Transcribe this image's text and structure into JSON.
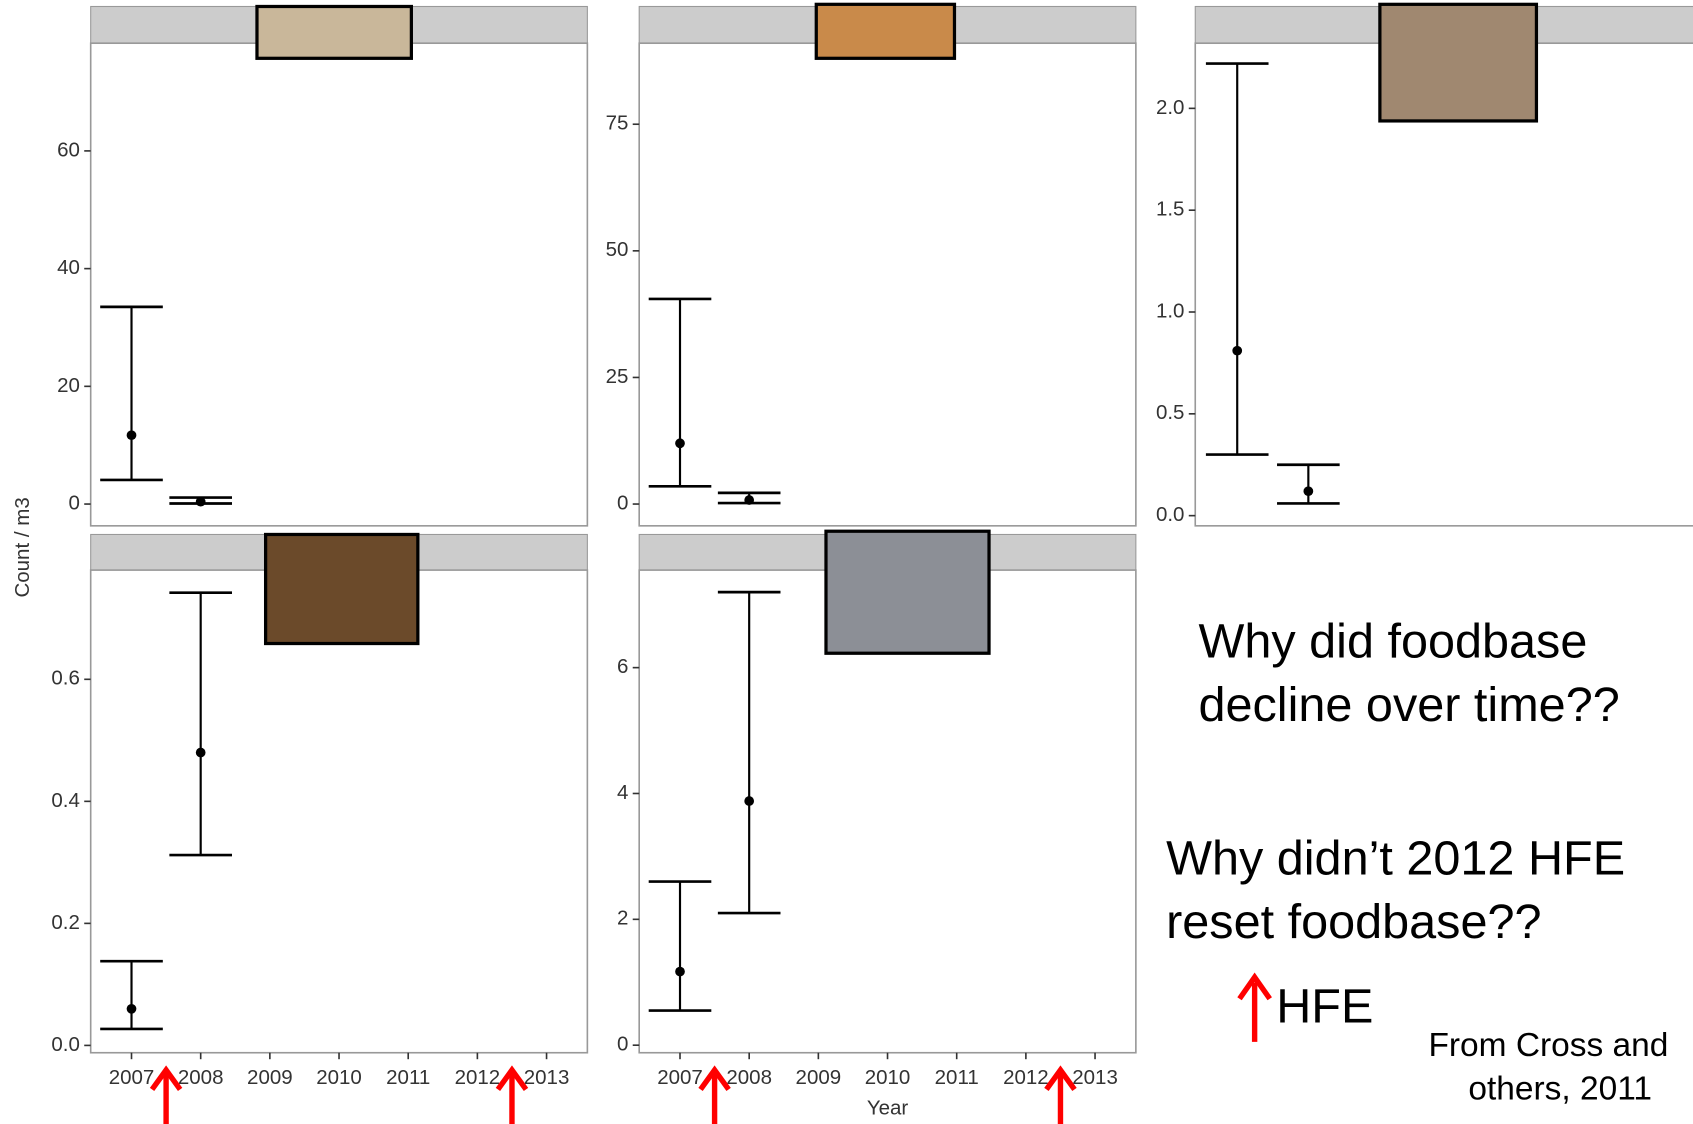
{
  "chart_data": [
    {
      "type": "errorbar",
      "x": [
        2007,
        2008
      ],
      "values": [
        11.7,
        0.4
      ],
      "lower": [
        4.1,
        0.1
      ],
      "upper": [
        33.5,
        1.1
      ],
      "color": "#000000",
      "xlim": [
        2006.41,
        2013.59
      ],
      "ylim": [
        -3.7,
        78.3
      ],
      "yticks": [
        0,
        20,
        40,
        60
      ]
    },
    {
      "type": "errorbar",
      "x": [
        2007,
        2008
      ],
      "values": [
        12,
        0.8
      ],
      "lower": [
        3.5,
        0.2
      ],
      "upper": [
        40.5,
        2.2
      ],
      "color": "#000000",
      "xlim": [
        2006.41,
        2013.59
      ],
      "ylim": [
        -4.3,
        91
      ],
      "yticks": [
        0,
        25,
        50,
        75
      ]
    },
    {
      "type": "errorbar",
      "x": [
        2007,
        2008
      ],
      "values": [
        0.81,
        0.12
      ],
      "lower": [
        0.3,
        0.06
      ],
      "upper": [
        2.22,
        0.25
      ],
      "color": "#000000",
      "xlim": [
        2006.41,
        2013.59
      ],
      "ylim": [
        -0.05,
        2.32
      ],
      "yticks": [
        {
          "value": 0,
          "label": "0.0"
        },
        0.5,
        {
          "value": 1,
          "label": "1.0"
        },
        1.5,
        {
          "value": 2,
          "label": "2.0"
        }
      ]
    },
    {
      "type": "errorbar",
      "x": [
        2007,
        2008
      ],
      "values": [
        0.06,
        0.48
      ],
      "lower": [
        0.027,
        0.312
      ],
      "upper": [
        0.138,
        0.742
      ],
      "color": "#000000",
      "xlim": [
        2006.41,
        2013.59
      ],
      "ylim": [
        -0.012,
        0.779
      ],
      "yticks": [
        {
          "value": 0,
          "label": "0.0"
        },
        0.2,
        0.4,
        0.6
      ],
      "xticks": [
        2007,
        2008,
        2009,
        2010,
        2011,
        2012,
        2013
      ],
      "events": [
        2007.5,
        2012.5
      ],
      "event_color": "#ff0000"
    },
    {
      "type": "errorbar",
      "x": [
        2007,
        2008
      ],
      "values": [
        1.17,
        3.88
      ],
      "lower": [
        0.55,
        2.1
      ],
      "upper": [
        2.6,
        7.2
      ],
      "color": "#000000",
      "xlim": [
        2006.41,
        2013.59
      ],
      "ylim": [
        -0.12,
        7.55
      ],
      "yticks": [
        0,
        2,
        4,
        6
      ],
      "xticks": [
        2007,
        2008,
        2009,
        2010,
        2011,
        2012,
        2013
      ],
      "events": [
        2007.5,
        2012.5
      ],
      "event_color": "#ff0000",
      "xlabel": "Year"
    }
  ],
  "ylabel": "Count / m3",
  "notes": {
    "question1": [
      "Why did foodbase",
      "decline over time??"
    ],
    "question2": [
      "Why didn’t 2012 HFE",
      "reset foodbase??"
    ],
    "legend": "HFE",
    "citation": [
      "From Cross and",
      "others, 2011"
    ]
  }
}
